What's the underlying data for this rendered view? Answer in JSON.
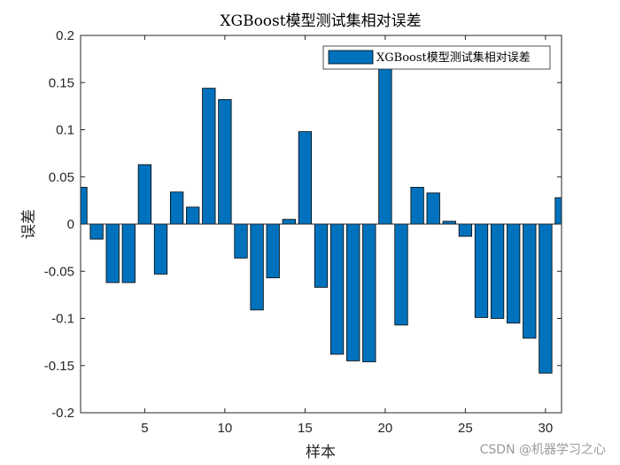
{
  "chart_data": {
    "type": "bar",
    "title": "XGBoost模型测试集相对误差",
    "xlabel": "样本",
    "ylabel": "误差",
    "xlim": [
      1,
      31
    ],
    "ylim": [
      -0.2,
      0.2
    ],
    "x_ticks": [
      5,
      10,
      15,
      20,
      25,
      30
    ],
    "y_ticks": [
      -0.2,
      -0.15,
      -0.1,
      -0.05,
      0,
      0.05,
      0.1,
      0.15,
      0.2
    ],
    "y_tick_labels": [
      "-0.2",
      "-0.15",
      "-0.1",
      "-0.05",
      "0",
      "0.05",
      "0.1",
      "0.15",
      "0.2"
    ],
    "legend": {
      "position": "top-right"
    },
    "grid": false,
    "categories": [
      1,
      2,
      3,
      4,
      5,
      6,
      7,
      8,
      9,
      10,
      11,
      12,
      13,
      14,
      15,
      16,
      17,
      18,
      19,
      20,
      21,
      22,
      23,
      24,
      25,
      26,
      27,
      28,
      29,
      30,
      31
    ],
    "series": [
      {
        "name": "XGBoost模型测试集相对误差",
        "color": "#0072BD",
        "values": [
          0.039,
          -0.016,
          -0.062,
          -0.062,
          0.063,
          -0.053,
          0.034,
          0.018,
          0.144,
          0.132,
          -0.036,
          -0.091,
          -0.057,
          0.005,
          0.098,
          -0.067,
          -0.138,
          -0.145,
          -0.146,
          0.172,
          -0.107,
          0.039,
          0.033,
          0.003,
          -0.013,
          -0.099,
          -0.1,
          -0.105,
          -0.121,
          -0.158,
          0.028
        ]
      }
    ]
  },
  "watermark": "CSDN @机器学习之心"
}
